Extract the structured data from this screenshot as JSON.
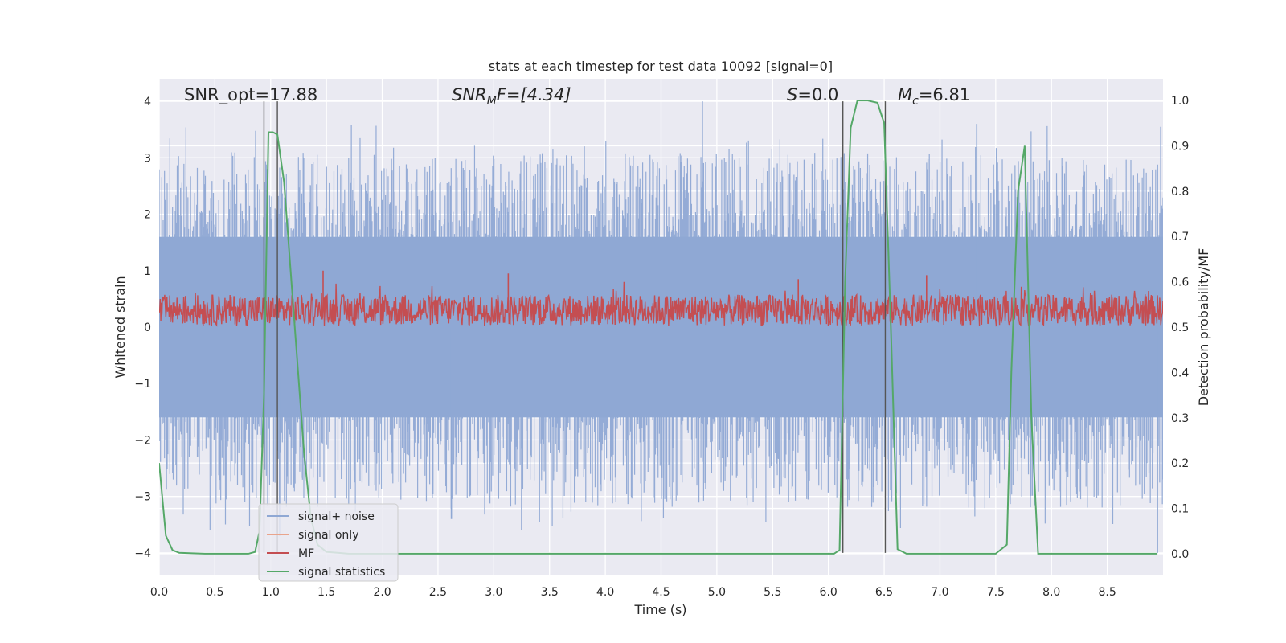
{
  "chart_data": {
    "type": "line",
    "title": "stats at each timestep for test data 10092 [signal=0]",
    "xlabel": "Time (s)",
    "ylabel_left": "Whitened strain",
    "ylabel_right": "Detection probability/MF",
    "xlim": [
      0.0,
      9.0
    ],
    "ylim_left": [
      -4.4,
      4.4
    ],
    "ylim_right": [
      -0.048,
      1.048
    ],
    "grid": true,
    "xticks": [
      0.0,
      0.5,
      1.0,
      1.5,
      2.0,
      2.5,
      3.0,
      3.5,
      4.0,
      4.5,
      5.0,
      5.5,
      6.0,
      6.5,
      7.0,
      7.5,
      8.0,
      8.5
    ],
    "xtick_labels": [
      "0.0",
      "0.5",
      "1.0",
      "1.5",
      "2.0",
      "2.5",
      "3.0",
      "3.5",
      "4.0",
      "4.5",
      "5.0",
      "5.5",
      "6.0",
      "6.5",
      "7.0",
      "7.5",
      "8.0",
      "8.5"
    ],
    "yticks_left": [
      -4,
      -3,
      -2,
      -1,
      0,
      1,
      2,
      3,
      4
    ],
    "ytick_labels_left": [
      "−4",
      "−3",
      "−2",
      "−1",
      "0",
      "1",
      "2",
      "3",
      "4"
    ],
    "yticks_right": [
      0.0,
      0.1,
      0.2,
      0.3,
      0.4,
      0.5,
      0.6,
      0.7,
      0.8,
      0.9,
      1.0
    ],
    "ytick_labels_right": [
      "0.0",
      "0.1",
      "0.2",
      "0.3",
      "0.4",
      "0.5",
      "0.6",
      "0.7",
      "0.8",
      "0.9",
      "1.0"
    ],
    "annotations": {
      "snr_opt": "SNR_opt=17.88",
      "snr_mf_main": "SNR",
      "snr_mf_sub": "M",
      "snr_mf_rest": "F=[4.34]",
      "s_main": "S",
      "s_rest": "=0.0",
      "mc_main": "M",
      "mc_sub": "c",
      "mc_rest": "=6.81"
    },
    "vertical_markers": [
      {
        "x": 0.94,
        "y_from": -4.0,
        "y_to": 4.0
      },
      {
        "x": 1.06,
        "y_from": -4.0,
        "y_to": 4.0
      },
      {
        "x": 6.13,
        "y_from": -4.0,
        "y_to": 4.0
      },
      {
        "x": 6.51,
        "y_from": -4.0,
        "y_to": 4.0
      }
    ],
    "legend": {
      "position": "lower-left",
      "entries": [
        {
          "label": "signal+ noise",
          "color": "#8fa8d4"
        },
        {
          "label": "signal only",
          "color": "#e9a48c"
        },
        {
          "label": "MF",
          "color": "#c44e52"
        },
        {
          "label": "signal statistics",
          "color": "#55a868"
        }
      ]
    },
    "series": [
      {
        "name": "signal+ noise",
        "axis": "left",
        "style": "dense-noise",
        "color": "#8fa8d4",
        "x_range": [
          0.0,
          9.0
        ],
        "core_band": [
          -1.6,
          1.6
        ],
        "peak_range": [
          -4.0,
          4.0
        ],
        "notable_peaks": [
          {
            "x": 4.87,
            "y": 4.0
          },
          {
            "x": 7.33,
            "y": 3.6
          },
          {
            "x": 8.98,
            "y": 3.55
          },
          {
            "x": 8.95,
            "y": -4.0
          },
          {
            "x": 3.25,
            "y": -3.6
          },
          {
            "x": 2.62,
            "y": -3.4
          },
          {
            "x": 1.08,
            "y": -3.7
          }
        ]
      },
      {
        "name": "MF",
        "axis": "left",
        "style": "dense-noise",
        "color": "#c44e52",
        "x_range": [
          0.0,
          9.0
        ],
        "base": 0.3,
        "band": [
          0.0,
          0.65
        ],
        "notable_peaks": [
          {
            "x": 1.47,
            "y": 1.0
          },
          {
            "x": 3.13,
            "y": 0.95
          },
          {
            "x": 6.88,
            "y": 0.92
          },
          {
            "x": 5.73,
            "y": 0.85
          }
        ]
      },
      {
        "name": "signal statistics",
        "axis": "right",
        "color": "#55a868",
        "x": [
          0.0,
          0.06,
          0.12,
          0.18,
          0.3,
          0.42,
          0.6,
          0.8,
          0.86,
          0.9,
          0.94,
          0.98,
          1.02,
          1.06,
          1.12,
          1.18,
          1.24,
          1.3,
          1.36,
          1.42,
          1.5,
          1.7,
          2.0,
          3.0,
          4.0,
          5.0,
          5.5,
          6.05,
          6.1,
          6.15,
          6.2,
          6.26,
          6.35,
          6.44,
          6.5,
          6.56,
          6.62,
          6.7,
          7.0,
          7.5,
          7.6,
          7.64,
          7.7,
          7.76,
          7.82,
          7.88,
          8.0,
          8.5,
          8.95
        ],
        "y": [
          0.2,
          0.04,
          0.008,
          0.002,
          0.001,
          0.0,
          0.0,
          0.0,
          0.004,
          0.05,
          0.35,
          0.93,
          0.93,
          0.925,
          0.82,
          0.62,
          0.42,
          0.22,
          0.08,
          0.02,
          0.004,
          0.0,
          0.0,
          0.0,
          0.0,
          0.0,
          0.0,
          0.0,
          0.008,
          0.6,
          0.94,
          1.0,
          1.0,
          0.995,
          0.95,
          0.5,
          0.01,
          0.0,
          0.0,
          0.0,
          0.02,
          0.4,
          0.8,
          0.9,
          0.3,
          0.0,
          0.0,
          0.0,
          0.0
        ]
      }
    ]
  }
}
